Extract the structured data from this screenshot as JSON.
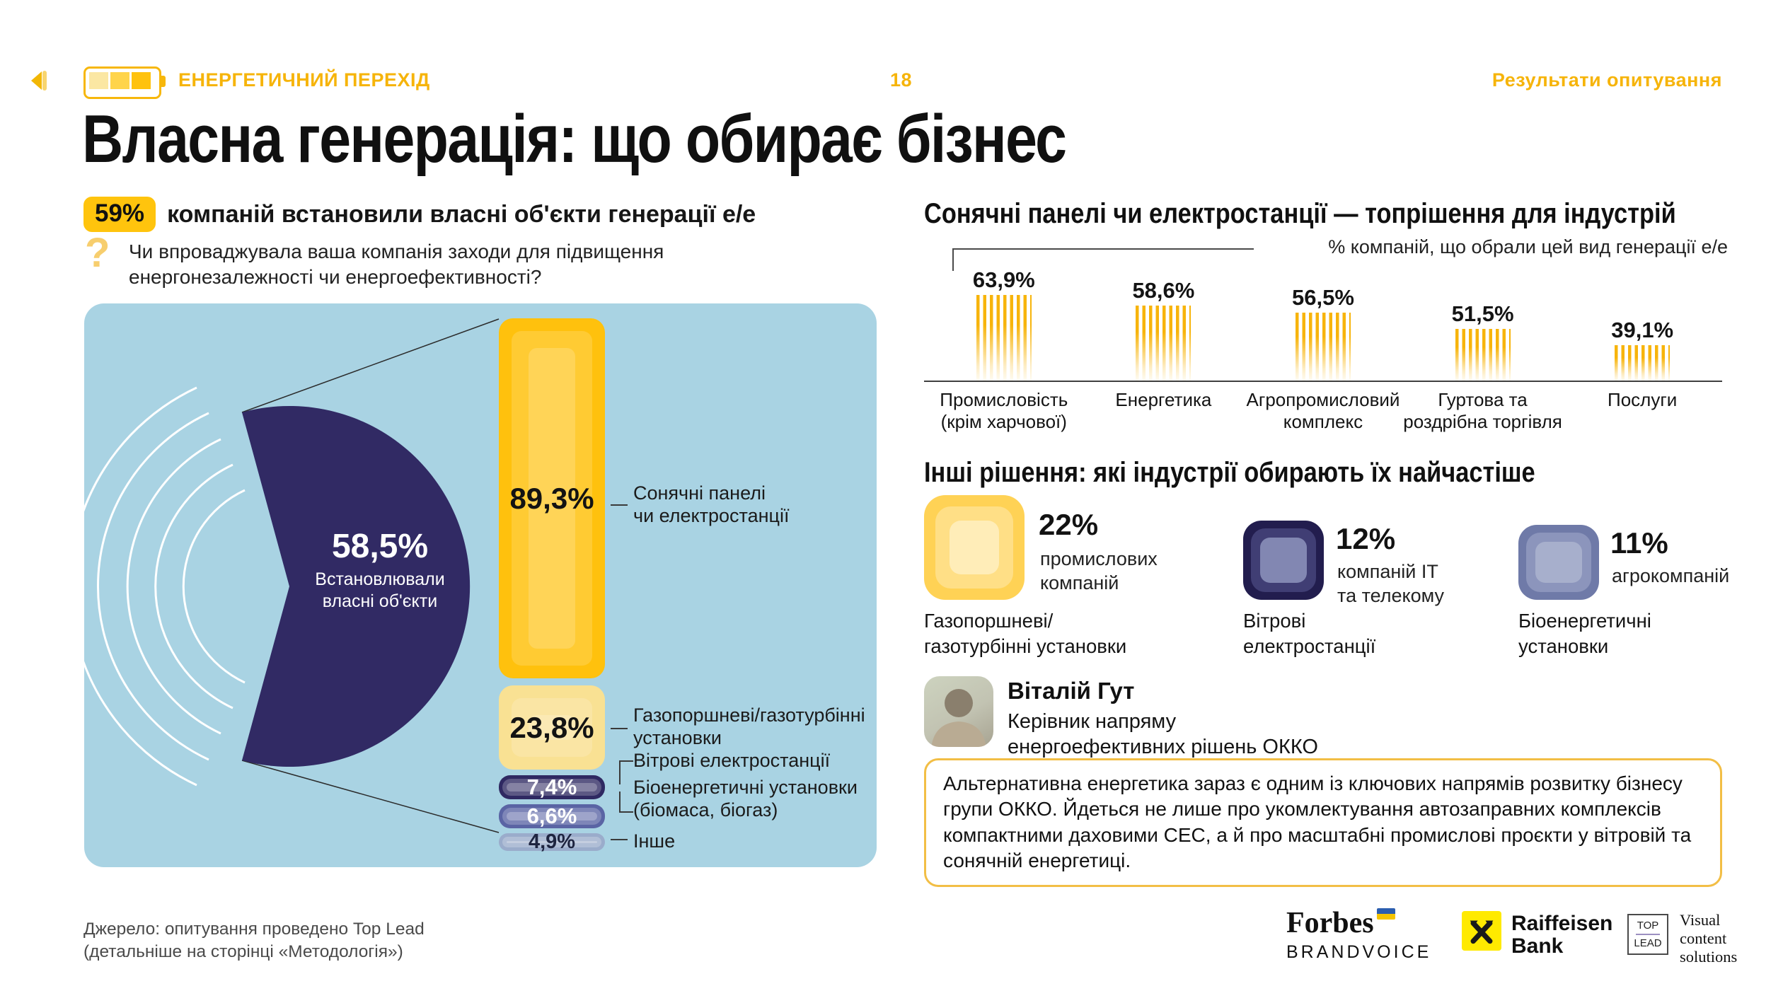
{
  "colors": {
    "accent_yellow": "#FFC20E",
    "pale_yellow": "#F9E193",
    "navy": "#312A64",
    "slate_blue": "#5A64A4",
    "light_blue_grey": "#9AACCB",
    "panel_blue": "#A9D3E3",
    "header_yellow": "#F6B40A",
    "quote_border": "#F2BE45"
  },
  "header": {
    "series_label": "ЕНЕРГЕТИЧНИЙ ПЕРЕХІД",
    "page_number": "18",
    "section_label": "Результати опитування"
  },
  "title": "Власна генерація: що обирає бізнес",
  "key_stat": {
    "badge": "59%",
    "text": "компаній встановили власні об'єкти генерації е/е"
  },
  "question": {
    "line1": "Чи впроваджувала ваша компанія заходи для підвищення",
    "line2": "енергонезалежності чи енергоефективності?"
  },
  "chart_data": [
    {
      "type": "pie",
      "id": "installed-own-generation",
      "values": [
        58.5,
        41.5
      ],
      "center_value": "58,5%",
      "center_label_line1": "Встановлювали",
      "center_label_line2": "власні об'єкти",
      "unit": "%"
    },
    {
      "type": "bar",
      "id": "generation-types",
      "unit": "%",
      "bars": [
        {
          "value": 89.3,
          "label_value": "89,3%",
          "label_line1": "Сонячні панелі",
          "label_line2": "чи електростанції",
          "color": "#FFC10D"
        },
        {
          "value": 23.8,
          "label_value": "23,8%",
          "label_line1": "Газопоршневі/газотурбінні",
          "label_line2": "установки",
          "color": "#F9E193"
        },
        {
          "value": 7.4,
          "label_value": "7,4%",
          "label_line1": "Вітрові електростанції",
          "label_line2": "",
          "color": "#2F2962"
        },
        {
          "value": 6.6,
          "label_value": "6,6%",
          "label_line1": "Біоенергетичні установки",
          "label_line2": "(біомаса, біогаз)",
          "color": "#5A64A4"
        },
        {
          "value": 4.9,
          "label_value": "4,9%",
          "label_line1": "Інше",
          "label_line2": "",
          "color": "#9AACCB"
        }
      ]
    },
    {
      "type": "bar",
      "id": "solar-by-industry",
      "title": "Сонячні панелі чи електростанції — топрішення для індустрій",
      "note": "% компаній, що обрали цей вид генерації е/е",
      "unit": "%",
      "bars": [
        {
          "value": 63.9,
          "label_value": "63,9%",
          "cat_line1": "Промисловість",
          "cat_line2": "(крім харчової)"
        },
        {
          "value": 58.6,
          "label_value": "58,6%",
          "cat_line1": "Енергетика",
          "cat_line2": ""
        },
        {
          "value": 56.5,
          "label_value": "56,5%",
          "cat_line1": "Агропромисловий",
          "cat_line2": "комплекс"
        },
        {
          "value": 51.5,
          "label_value": "51,5%",
          "cat_line1": "Гуртова та",
          "cat_line2": "роздрібна торгівля"
        },
        {
          "value": 39.1,
          "label_value": "39,1%",
          "cat_line1": "Послуги",
          "cat_line2": ""
        }
      ]
    },
    {
      "type": "bar",
      "id": "other-solutions",
      "title": "Інші рішення: які індустрії обирають їх найчастіше",
      "unit": "%",
      "items": [
        {
          "value": 22,
          "label_value": "22%",
          "who_line1": "промислових",
          "who_line2": "компаній",
          "solution_line1": "Газопоршневі/",
          "solution_line2": "газотурбінні установки",
          "color": "#FFD255"
        },
        {
          "value": 12,
          "label_value": "12%",
          "who_line1": "компаній ІТ",
          "who_line2": "та телекому",
          "solution_line1": "Вітрові",
          "solution_line2": "електростанції",
          "color": "#221D4E"
        },
        {
          "value": 11,
          "label_value": "11%",
          "who_line1": "агрокомпаній",
          "who_line2": "",
          "solution_line1": "Біоенергетичні",
          "solution_line2": "установки",
          "color": "#6F7AA8"
        }
      ]
    }
  ],
  "expert": {
    "name": "Віталій Гут",
    "role_line1": "Керівник напряму",
    "role_line2": "енергоефективних рішень ОККО"
  },
  "quote": "Альтернативна енергетика зараз є одним із ключових напрямів розвитку бізнесу групи ОККО. Йдеться не лише про укомлектування автозаправних комплексів компактними даховими СЕС, а й про масштабні промислові проєкти у вітровій та сонячній енергетиці.",
  "source": {
    "line1": "Джерело: опитування проведено Top Lead",
    "line2": "(детальніше на сторінці «Методологія»)"
  },
  "logos": {
    "forbes": {
      "line1": "Forbes",
      "line2": "BRANDVOICE"
    },
    "raiffeisen": {
      "line1": "Raiffeisen",
      "line2": "Bank"
    },
    "toplead": {
      "box_line1": "TOP",
      "box_line2": "LEAD",
      "text_line1": "Visual",
      "text_line2": "content",
      "text_line3": "solutions"
    }
  }
}
